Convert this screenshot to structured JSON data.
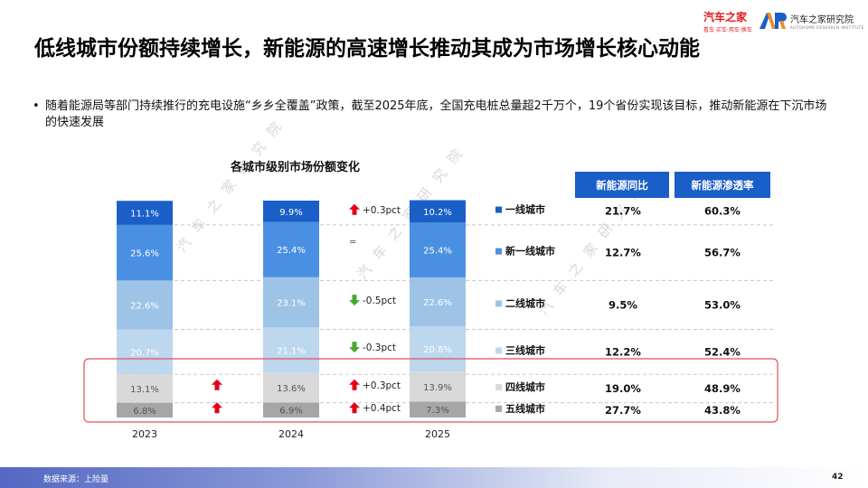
{
  "header": {
    "title": "低线城市份额持续增长，新能源的高速增长推动其成为市场增长核心动能",
    "logo1_text": "汽车之家",
    "logo1_sub": "看车·买车·用车·换车",
    "logo2_text": "汽车之家研究院",
    "logo2_sub": "AUTOHOME RESEARCH INSTITUTE"
  },
  "bullet": {
    "symbol": "•",
    "text": "随着能源局等部门持续推行的充电设施“乡乡全覆盖”政策，截至2025年底，全国充电桩总量超2千万个，19个省份实现该目标，推动新能源在下沉市场的快速发展"
  },
  "watermark": {
    "text": "汽车之家研究院"
  },
  "chart_data": {
    "type": "bar",
    "title": "各城市级别市场份额变化",
    "categories": [
      "2023",
      "2024",
      "2025"
    ],
    "series": [
      {
        "name": "五线城市",
        "values": [
          6.8,
          6.9,
          7.3
        ],
        "labels": [
          "6.8%",
          "6.9%",
          "7.3%"
        ],
        "color": "#a6a6a6"
      },
      {
        "name": "四线城市",
        "values": [
          13.1,
          13.6,
          13.9
        ],
        "labels": [
          "13.1%",
          "13.6%",
          "13.9%"
        ],
        "color": "#d9d9d9"
      },
      {
        "name": "三线城市",
        "values": [
          20.7,
          21.1,
          20.8
        ],
        "labels": [
          "20.7%",
          "21.1%",
          "20.8%"
        ],
        "color": "#bdd7ee"
      },
      {
        "name": "二线城市",
        "values": [
          22.6,
          23.1,
          22.6
        ],
        "labels": [
          "22.6%",
          "23.1%",
          "22.6%"
        ],
        "color": "#9dc3e6"
      },
      {
        "name": "新一线城市",
        "values": [
          25.6,
          25.4,
          25.4
        ],
        "labels": [
          "25.6%",
          "25.4%",
          "25.4%"
        ],
        "color": "#4a90e2"
      },
      {
        "name": "一线城市",
        "values": [
          11.1,
          9.9,
          10.2
        ],
        "labels": [
          "11.1%",
          "9.9%",
          "10.2%"
        ],
        "color": "#1a5fc8"
      }
    ],
    "changes": [
      {
        "series": "一线城市",
        "dir": "up",
        "text": "+0.3pct"
      },
      {
        "series": "新一线城市",
        "dir": "eq",
        "text": "="
      },
      {
        "series": "二线城市",
        "dir": "down",
        "text": "-0.5pct"
      },
      {
        "series": "三线城市",
        "dir": "down",
        "text": "-0.3pct"
      },
      {
        "series": "四线城市",
        "dir": "up",
        "text": "+0.3pct"
      },
      {
        "series": "五线城市",
        "dir": "up",
        "text": "+0.4pct"
      }
    ],
    "prior_changes": [
      {
        "series": "四线城市",
        "dir": "up"
      },
      {
        "series": "五线城市",
        "dir": "up"
      }
    ],
    "table": {
      "headers": [
        "新能源同比",
        "新能源渗透率"
      ],
      "rows": [
        {
          "city": "一线城市",
          "yoy": "21.7%",
          "pen": "60.3%",
          "color": "#1a5fc8"
        },
        {
          "city": "新一线城市",
          "yoy": "12.7%",
          "pen": "56.7%",
          "color": "#4a90e2"
        },
        {
          "city": "二线城市",
          "yoy": "9.5%",
          "pen": "53.0%",
          "color": "#9dc3e6"
        },
        {
          "city": "三线城市",
          "yoy": "12.2%",
          "pen": "52.4%",
          "color": "#bdd7ee"
        },
        {
          "city": "四线城市",
          "yoy": "19.0%",
          "pen": "48.9%",
          "color": "#d9d9d9"
        },
        {
          "city": "五线城市",
          "yoy": "27.7%",
          "pen": "43.8%",
          "color": "#a6a6a6"
        }
      ]
    },
    "colors": {
      "up": "#e60012",
      "down": "#4aa832",
      "highlight_box": "#e0525a",
      "header_bg": "#1a5fc8"
    }
  },
  "footer": {
    "source": "数据来源：上险量",
    "page": "42"
  }
}
